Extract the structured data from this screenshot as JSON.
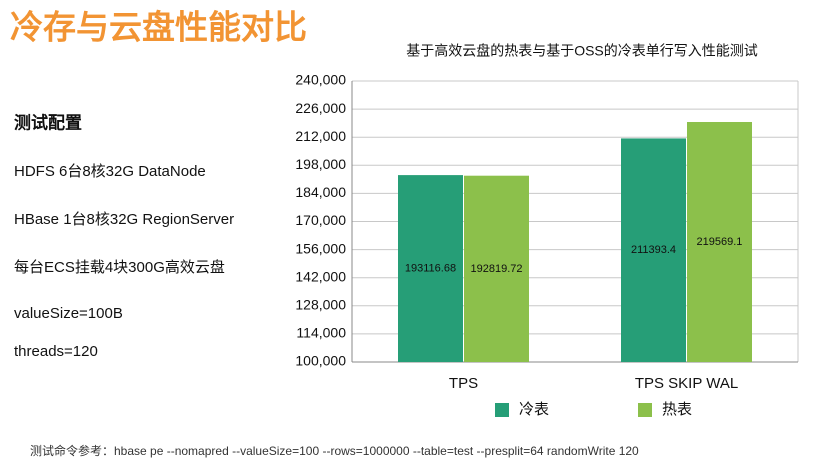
{
  "header": {
    "title": "冷存与云盘性能对比"
  },
  "config": {
    "heading": "测试配置",
    "items": [
      "HDFS  6台8核32G DataNode",
      "HBase 1台8核32G RegionServer",
      "每台ECS挂载4块300G高效云盘",
      "valueSize=100B",
      "threads=120"
    ]
  },
  "footer": "测试命令参考：hbase pe --nomapred --valueSize=100 --rows=1000000 --table=test  --presplit=64 randomWrite 120",
  "chart_data": {
    "type": "bar",
    "title": "基于高效云盘的热表与基于OSS的冷表单行写入性能测试",
    "categories": [
      "TPS",
      "TPS SKIP WAL"
    ],
    "series": [
      {
        "name": "冷表",
        "color": "#269e77",
        "values": [
          193116.68,
          211393.4
        ]
      },
      {
        "name": "热表",
        "color": "#8cc04b",
        "values": [
          192819.72,
          219569.1
        ]
      }
    ],
    "ylim": [
      100000,
      240000
    ],
    "yticks": [
      {
        "value": 100000,
        "label": "100,000"
      },
      {
        "value": 114000,
        "label": "114,000"
      },
      {
        "value": 128000,
        "label": "128,000"
      },
      {
        "value": 142000,
        "label": "142,000"
      },
      {
        "value": 156000,
        "label": "156,000"
      },
      {
        "value": 170000,
        "label": "170,000"
      },
      {
        "value": 184000,
        "label": "184,000"
      },
      {
        "value": 198000,
        "label": "198,000"
      },
      {
        "value": 212000,
        "label": "212,000"
      },
      {
        "value": 226000,
        "label": "226,000"
      },
      {
        "value": 240000,
        "label": "240,000"
      }
    ],
    "grid": true,
    "legend": "bottom"
  }
}
